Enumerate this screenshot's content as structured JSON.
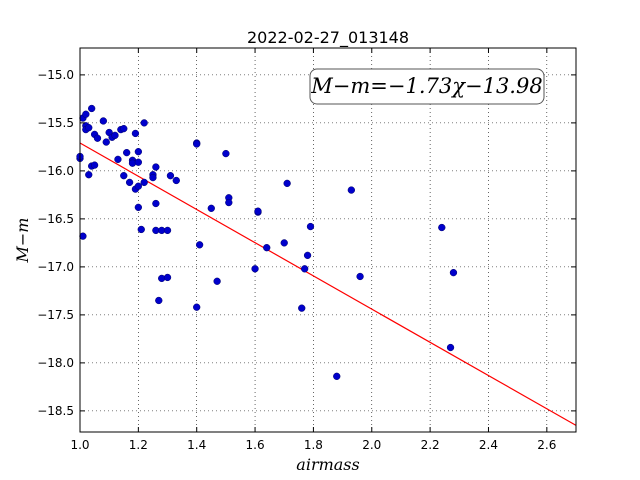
{
  "chart_data": {
    "type": "scatter",
    "title": "2022-02-27_013148",
    "xlabel": "airmass",
    "ylabel": "M−m",
    "xlim": [
      1.0,
      2.7
    ],
    "ylim": [
      -18.72,
      -14.72
    ],
    "y_inverted": true,
    "grid": true,
    "x_ticks": [
      1.0,
      1.2,
      1.4,
      1.6,
      1.8,
      2.0,
      2.2,
      2.4,
      2.6
    ],
    "x_tick_labels": [
      "1.0",
      "1.2",
      "1.4",
      "1.6",
      "1.8",
      "2.0",
      "2.2",
      "2.4",
      "2.6"
    ],
    "y_ticks": [
      -15.0,
      -15.5,
      -16.0,
      -16.5,
      -17.0,
      -17.5,
      -18.0,
      -18.5
    ],
    "y_tick_labels": [
      "−15.0",
      "−15.5",
      "−16.0",
      "−16.5",
      "−17.0",
      "−17.5",
      "−18.0",
      "−18.5"
    ],
    "annotation": "M−m=−1.73χ−13.98",
    "fit": {
      "slope": -1.73,
      "intercept": -13.98,
      "color": "#ff0000"
    },
    "point_color": "#0000cc",
    "points": [
      [
        1.0,
        -15.87
      ],
      [
        1.0,
        -15.85
      ],
      [
        1.01,
        -16.68
      ],
      [
        1.01,
        -15.45
      ],
      [
        1.02,
        -15.53
      ],
      [
        1.02,
        -15.41
      ],
      [
        1.02,
        -15.57
      ],
      [
        1.03,
        -15.55
      ],
      [
        1.03,
        -16.04
      ],
      [
        1.04,
        -15.35
      ],
      [
        1.04,
        -15.95
      ],
      [
        1.05,
        -15.62
      ],
      [
        1.05,
        -15.94
      ],
      [
        1.06,
        -15.66
      ],
      [
        1.08,
        -15.48
      ],
      [
        1.09,
        -15.7
      ],
      [
        1.1,
        -15.6
      ],
      [
        1.11,
        -15.65
      ],
      [
        1.12,
        -15.63
      ],
      [
        1.13,
        -15.88
      ],
      [
        1.14,
        -15.57
      ],
      [
        1.15,
        -15.56
      ],
      [
        1.15,
        -16.05
      ],
      [
        1.16,
        -15.81
      ],
      [
        1.17,
        -16.12
      ],
      [
        1.18,
        -15.89
      ],
      [
        1.18,
        -15.92
      ],
      [
        1.19,
        -15.61
      ],
      [
        1.19,
        -16.19
      ],
      [
        1.2,
        -16.16
      ],
      [
        1.2,
        -15.8
      ],
      [
        1.2,
        -15.91
      ],
      [
        1.2,
        -16.38
      ],
      [
        1.21,
        -16.61
      ],
      [
        1.22,
        -16.12
      ],
      [
        1.22,
        -15.5
      ],
      [
        1.25,
        -16.04
      ],
      [
        1.25,
        -16.07
      ],
      [
        1.26,
        -15.96
      ],
      [
        1.26,
        -16.62
      ],
      [
        1.26,
        -16.34
      ],
      [
        1.27,
        -17.35
      ],
      [
        1.28,
        -16.62
      ],
      [
        1.28,
        -17.12
      ],
      [
        1.3,
        -16.62
      ],
      [
        1.3,
        -17.11
      ],
      [
        1.31,
        -16.05
      ],
      [
        1.33,
        -16.1
      ],
      [
        1.4,
        -15.71
      ],
      [
        1.4,
        -15.72
      ],
      [
        1.4,
        -17.42
      ],
      [
        1.41,
        -16.77
      ],
      [
        1.45,
        -16.39
      ],
      [
        1.47,
        -17.15
      ],
      [
        1.5,
        -15.82
      ],
      [
        1.51,
        -16.28
      ],
      [
        1.51,
        -16.33
      ],
      [
        1.6,
        -17.02
      ],
      [
        1.61,
        -16.43
      ],
      [
        1.61,
        -16.42
      ],
      [
        1.64,
        -16.8
      ],
      [
        1.7,
        -16.75
      ],
      [
        1.71,
        -16.13
      ],
      [
        1.76,
        -17.43
      ],
      [
        1.77,
        -17.02
      ],
      [
        1.78,
        -16.88
      ],
      [
        1.79,
        -16.58
      ],
      [
        1.88,
        -18.14
      ],
      [
        1.93,
        -16.2
      ],
      [
        1.96,
        -17.1
      ],
      [
        2.24,
        -16.59
      ],
      [
        2.27,
        -17.84
      ],
      [
        2.28,
        -17.06
      ]
    ]
  }
}
